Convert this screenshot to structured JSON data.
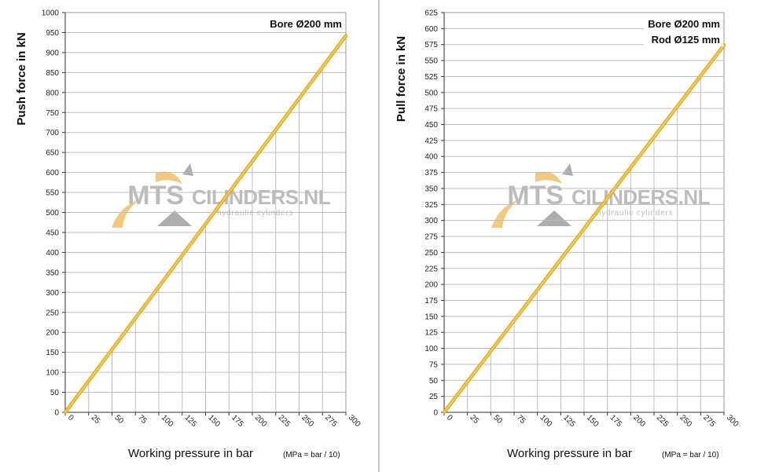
{
  "watermark": {
    "brand_left": "MTS",
    "brand_right": "CILINDERS.NL",
    "tagline": "hydraulic cylinders",
    "colors": {
      "text": "#b9b9b9",
      "accent": "#f3c77a",
      "arrow": "#a9a9a9"
    }
  },
  "colors": {
    "line": "#f2c94c",
    "line_edge": "#d9a21b",
    "grid": "#bdbdbd",
    "axis": "#333333"
  },
  "charts": [
    {
      "ylabel": "Push force  in kN",
      "xlabel": "Working pressure in bar",
      "xnote": "(MPa = bar / 10)",
      "spec_lines": [
        "Bore Ø200 mm"
      ]
    },
    {
      "ylabel": "Pull force  in kN",
      "xlabel": "Working pressure in bar",
      "xnote": "(MPa = bar / 10)",
      "spec_lines": [
        "Bore Ø200 mm",
        "Rod Ø125 mm"
      ]
    }
  ],
  "chart_data": [
    {
      "type": "line",
      "xlabel": "Working pressure in bar",
      "ylabel": "Push force  in kN",
      "x_ticks": [
        0,
        25,
        50,
        75,
        100,
        125,
        150,
        175,
        200,
        225,
        250,
        275,
        300
      ],
      "y_ticks": [
        0,
        50,
        100,
        150,
        200,
        250,
        300,
        350,
        400,
        450,
        500,
        550,
        600,
        650,
        700,
        750,
        800,
        850,
        900,
        950,
        1000
      ],
      "xlim": [
        0,
        300
      ],
      "ylim": [
        0,
        1000
      ],
      "grid": true,
      "series": [
        {
          "x": [
            0,
            300
          ],
          "y": [
            0,
            942
          ]
        }
      ]
    },
    {
      "type": "line",
      "xlabel": "Working pressure in bar",
      "ylabel": "Pull force  in kN",
      "x_ticks": [
        0,
        25,
        50,
        75,
        100,
        125,
        150,
        175,
        200,
        225,
        250,
        275,
        300
      ],
      "y_ticks": [
        0,
        25,
        50,
        75,
        100,
        125,
        150,
        175,
        200,
        225,
        250,
        275,
        300,
        325,
        350,
        375,
        400,
        425,
        450,
        475,
        500,
        525,
        550,
        575,
        600,
        625
      ],
      "xlim": [
        0,
        300
      ],
      "ylim": [
        0,
        625
      ],
      "grid": true,
      "series": [
        {
          "x": [
            0,
            300
          ],
          "y": [
            0,
            574
          ]
        }
      ]
    }
  ]
}
